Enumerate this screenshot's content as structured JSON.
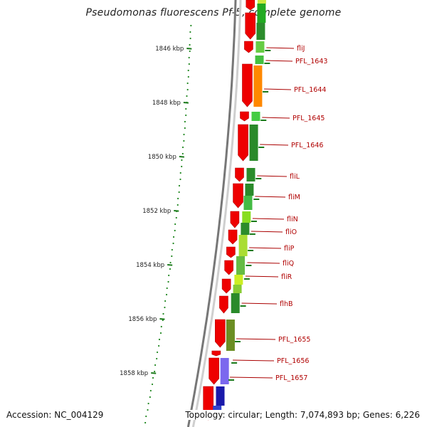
{
  "title": "Pseudomonas fluorescens Pf-5, complete genome",
  "footer": {
    "accession_label": "Accession: NC_004129",
    "summary": "Topology: circular; Length: 7,074,893 bp; Genes: 6,226"
  },
  "kbp_ticks": [
    {
      "label": "1846 kbp"
    },
    {
      "label": "1848 kbp"
    },
    {
      "label": "1850 kbp"
    },
    {
      "label": "1852 kbp"
    },
    {
      "label": "1854 kbp"
    },
    {
      "label": "1856 kbp"
    },
    {
      "label": "1858 kbp"
    }
  ],
  "genes": [
    {
      "label": "fliJ"
    },
    {
      "label": "PFL_1643"
    },
    {
      "label": "PFL_1644"
    },
    {
      "label": "PFL_1645"
    },
    {
      "label": "PFL_1646"
    },
    {
      "label": "fliL"
    },
    {
      "label": "fliM"
    },
    {
      "label": "fliN"
    },
    {
      "label": "fliO"
    },
    {
      "label": "fliP"
    },
    {
      "label": "fliQ"
    },
    {
      "label": "fliR"
    },
    {
      "label": "flhB"
    },
    {
      "label": "PFL_1655"
    },
    {
      "label": "PFL_1656"
    },
    {
      "label": "PFL_1657"
    }
  ],
  "colors": {
    "cds": "#ee0000",
    "backbone": "#888888",
    "tick": "#1a7a1a",
    "gene_label": "#b00000"
  }
}
